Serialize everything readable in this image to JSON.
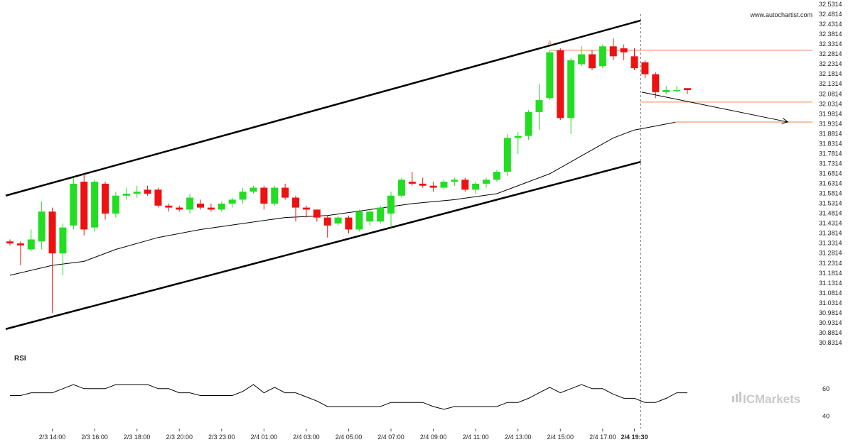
{
  "header": {
    "site_url": "www.autochartist.com"
  },
  "watermark": {
    "text": "ICMarkets",
    "color": "#c8c8c8"
  },
  "colors": {
    "bull": "#22dd22",
    "bear": "#ee1111",
    "channel": "#000000",
    "ma": "#000000",
    "level": "#f08050",
    "rsi": "#000000"
  },
  "chart_data": {
    "type": "candlestick",
    "y_axis": {
      "range": [
        30.8314,
        32.5314
      ],
      "tick_labels": [
        "32.5314",
        "32.4814",
        "32.4314",
        "32.3814",
        "32.3314",
        "32.2814",
        "32.2314",
        "32.1814",
        "32.1314",
        "32.0814",
        "32.0314",
        "31.9814",
        "31.9314",
        "31.8814",
        "31.8314",
        "31.7814",
        "31.7314",
        "31.6814",
        "31.6314",
        "31.5814",
        "31.5314",
        "31.4814",
        "31.4314",
        "31.3814",
        "31.3314",
        "31.2814",
        "31.2314",
        "31.1814",
        "31.1314",
        "31.0814",
        "31.0314",
        "30.9814",
        "30.9314",
        "30.8814",
        "30.8314"
      ]
    },
    "x_axis": {
      "tick_labels": [
        {
          "label": "2/3 14:00",
          "bar": 4
        },
        {
          "label": "2/3 16:00",
          "bar": 8
        },
        {
          "label": "2/3 18:00",
          "bar": 12
        },
        {
          "label": "2/3 20:00",
          "bar": 16
        },
        {
          "label": "2/3 23:00",
          "bar": 20
        },
        {
          "label": "2/4 01:00",
          "bar": 24
        },
        {
          "label": "2/4 03:00",
          "bar": 28
        },
        {
          "label": "2/4 05:00",
          "bar": 32
        },
        {
          "label": "2/4 07:00",
          "bar": 36
        },
        {
          "label": "2/4 09:00",
          "bar": 40
        },
        {
          "label": "2/4 11:00",
          "bar": 44
        },
        {
          "label": "2/4 13:00",
          "bar": 48
        },
        {
          "label": "2/4 15:00",
          "bar": 52
        },
        {
          "label": "2/4 17:00",
          "bar": 56
        },
        {
          "label": "2/4 19:30",
          "bar": 59,
          "bold": true
        }
      ]
    },
    "candles": [
      {
        "o": 31.34,
        "h": 31.35,
        "l": 31.32,
        "c": 31.33
      },
      {
        "o": 31.33,
        "h": 31.34,
        "l": 31.22,
        "c": 31.32
      },
      {
        "o": 31.3,
        "h": 31.4,
        "l": 31.29,
        "c": 31.35
      },
      {
        "o": 31.34,
        "h": 31.54,
        "l": 31.3,
        "c": 31.49
      },
      {
        "o": 31.49,
        "h": 31.51,
        "l": 30.98,
        "c": 31.28
      },
      {
        "o": 31.28,
        "h": 31.43,
        "l": 31.17,
        "c": 31.41
      },
      {
        "o": 31.42,
        "h": 31.66,
        "l": 31.4,
        "c": 31.63
      },
      {
        "o": 31.64,
        "h": 31.68,
        "l": 31.37,
        "c": 31.4
      },
      {
        "o": 31.41,
        "h": 31.65,
        "l": 31.39,
        "c": 31.64
      },
      {
        "o": 31.63,
        "h": 31.64,
        "l": 31.45,
        "c": 31.48
      },
      {
        "o": 31.48,
        "h": 31.59,
        "l": 31.46,
        "c": 31.57
      },
      {
        "o": 31.57,
        "h": 31.61,
        "l": 31.55,
        "c": 31.58
      },
      {
        "o": 31.58,
        "h": 31.62,
        "l": 31.56,
        "c": 31.59
      },
      {
        "o": 31.6,
        "h": 31.62,
        "l": 31.57,
        "c": 31.58
      },
      {
        "o": 31.6,
        "h": 31.61,
        "l": 31.51,
        "c": 31.52
      },
      {
        "o": 31.52,
        "h": 31.53,
        "l": 31.49,
        "c": 31.51
      },
      {
        "o": 31.51,
        "h": 31.52,
        "l": 31.49,
        "c": 31.5
      },
      {
        "o": 31.5,
        "h": 31.58,
        "l": 31.48,
        "c": 31.56
      },
      {
        "o": 31.53,
        "h": 31.55,
        "l": 31.5,
        "c": 31.51
      },
      {
        "o": 31.51,
        "h": 31.53,
        "l": 31.49,
        "c": 31.5
      },
      {
        "o": 31.5,
        "h": 31.54,
        "l": 31.49,
        "c": 31.53
      },
      {
        "o": 31.53,
        "h": 31.56,
        "l": 31.51,
        "c": 31.55
      },
      {
        "o": 31.55,
        "h": 31.61,
        "l": 31.53,
        "c": 31.59
      },
      {
        "o": 31.59,
        "h": 31.62,
        "l": 31.58,
        "c": 31.61
      },
      {
        "o": 31.61,
        "h": 31.62,
        "l": 31.5,
        "c": 31.53
      },
      {
        "o": 31.53,
        "h": 31.62,
        "l": 31.52,
        "c": 31.61
      },
      {
        "o": 31.61,
        "h": 31.63,
        "l": 31.55,
        "c": 31.56
      },
      {
        "o": 31.56,
        "h": 31.57,
        "l": 31.44,
        "c": 31.51
      },
      {
        "o": 31.51,
        "h": 31.52,
        "l": 31.46,
        "c": 31.5
      },
      {
        "o": 31.5,
        "h": 31.5,
        "l": 31.44,
        "c": 31.46
      },
      {
        "o": 31.46,
        "h": 31.47,
        "l": 31.36,
        "c": 31.42
      },
      {
        "o": 31.43,
        "h": 31.47,
        "l": 31.42,
        "c": 31.46
      },
      {
        "o": 31.46,
        "h": 31.47,
        "l": 31.38,
        "c": 31.4
      },
      {
        "o": 31.4,
        "h": 31.5,
        "l": 31.39,
        "c": 31.49
      },
      {
        "o": 31.44,
        "h": 31.5,
        "l": 31.42,
        "c": 31.49
      },
      {
        "o": 31.44,
        "h": 31.52,
        "l": 31.43,
        "c": 31.51
      },
      {
        "o": 31.48,
        "h": 31.59,
        "l": 31.41,
        "c": 31.57
      },
      {
        "o": 31.57,
        "h": 31.66,
        "l": 31.56,
        "c": 31.65
      },
      {
        "o": 31.64,
        "h": 31.69,
        "l": 31.62,
        "c": 31.63
      },
      {
        "o": 31.63,
        "h": 31.66,
        "l": 31.61,
        "c": 31.62
      },
      {
        "o": 31.62,
        "h": 31.64,
        "l": 31.59,
        "c": 31.61
      },
      {
        "o": 31.61,
        "h": 31.65,
        "l": 31.6,
        "c": 31.64
      },
      {
        "o": 31.64,
        "h": 31.66,
        "l": 31.62,
        "c": 31.65
      },
      {
        "o": 31.65,
        "h": 31.66,
        "l": 31.59,
        "c": 31.6
      },
      {
        "o": 31.6,
        "h": 31.64,
        "l": 31.58,
        "c": 31.63
      },
      {
        "o": 31.63,
        "h": 31.66,
        "l": 31.61,
        "c": 31.65
      },
      {
        "o": 31.65,
        "h": 31.7,
        "l": 31.64,
        "c": 31.69
      },
      {
        "o": 31.69,
        "h": 31.88,
        "l": 31.67,
        "c": 31.86
      },
      {
        "o": 31.86,
        "h": 31.89,
        "l": 31.78,
        "c": 31.87
      },
      {
        "o": 31.87,
        "h": 32.0,
        "l": 31.85,
        "c": 31.99
      },
      {
        "o": 31.99,
        "h": 32.13,
        "l": 31.9,
        "c": 32.05
      },
      {
        "o": 32.06,
        "h": 32.3,
        "l": 32.05,
        "c": 32.29
      },
      {
        "o": 32.3,
        "h": 32.31,
        "l": 31.95,
        "c": 31.96
      },
      {
        "o": 31.96,
        "h": 32.26,
        "l": 31.88,
        "c": 32.25
      },
      {
        "o": 32.23,
        "h": 32.32,
        "l": 32.22,
        "c": 32.28
      },
      {
        "o": 32.28,
        "h": 32.3,
        "l": 32.2,
        "c": 32.21
      },
      {
        "o": 32.22,
        "h": 32.33,
        "l": 32.21,
        "c": 32.32
      },
      {
        "o": 32.32,
        "h": 32.36,
        "l": 32.25,
        "c": 32.27
      },
      {
        "o": 32.31,
        "h": 32.33,
        "l": 32.25,
        "c": 32.29
      },
      {
        "o": 32.27,
        "h": 32.31,
        "l": 32.2,
        "c": 32.21
      },
      {
        "o": 32.24,
        "h": 32.25,
        "l": 32.16,
        "c": 32.18
      },
      {
        "o": 32.18,
        "h": 32.19,
        "l": 32.06,
        "c": 32.09
      },
      {
        "o": 32.09,
        "h": 32.12,
        "l": 32.08,
        "c": 32.1
      },
      {
        "o": 32.1,
        "h": 32.12,
        "l": 32.09,
        "c": 32.1
      },
      {
        "o": 32.11,
        "h": 32.11,
        "l": 32.08,
        "c": 32.1
      }
    ],
    "moving_average": [
      {
        "bar": 0,
        "v": 31.17
      },
      {
        "bar": 4,
        "v": 31.22
      },
      {
        "bar": 7,
        "v": 31.24
      },
      {
        "bar": 10,
        "v": 31.3
      },
      {
        "bar": 14,
        "v": 31.36
      },
      {
        "bar": 18,
        "v": 31.4
      },
      {
        "bar": 22,
        "v": 31.43
      },
      {
        "bar": 26,
        "v": 31.46
      },
      {
        "bar": 30,
        "v": 31.47
      },
      {
        "bar": 34,
        "v": 31.5
      },
      {
        "bar": 38,
        "v": 31.53
      },
      {
        "bar": 42,
        "v": 31.55
      },
      {
        "bar": 46,
        "v": 31.58
      },
      {
        "bar": 49,
        "v": 31.64
      },
      {
        "bar": 51,
        "v": 31.68
      },
      {
        "bar": 53,
        "v": 31.74
      },
      {
        "bar": 55,
        "v": 31.8
      },
      {
        "bar": 57,
        "v": 31.86
      },
      {
        "bar": 59,
        "v": 31.9
      },
      {
        "bar": 61,
        "v": 31.92
      },
      {
        "bar": 63,
        "v": 31.94
      }
    ],
    "channel_upper": [
      {
        "bar": -0.4,
        "v": 31.57
      },
      {
        "bar": 59.6,
        "v": 32.45
      }
    ],
    "channel_lower": [
      {
        "bar": -0.4,
        "v": 30.9
      },
      {
        "bar": 59.6,
        "v": 31.74
      }
    ],
    "levels": [
      {
        "from_bar": 51,
        "v": 32.3
      },
      {
        "from_bar": 59.6,
        "v": 32.04
      },
      {
        "from_bar": 62.7,
        "v": 31.94
      }
    ],
    "forecast_arrow": {
      "from": {
        "bar": 59.7,
        "v": 32.09
      },
      "to": {
        "bar": 73.5,
        "v": 31.94
      }
    },
    "pattern_point": {
      "label": "A",
      "bar": 51,
      "v": 32.32
    },
    "current_time_bar": 59.6,
    "rsi": {
      "label": "RSI",
      "tick_labels": [
        "60",
        "40"
      ],
      "ticks": [
        60,
        40
      ],
      "range": [
        33,
        77
      ],
      "values": [
        55,
        55,
        57,
        57,
        57,
        60,
        63,
        60,
        60,
        60,
        63,
        63,
        63,
        63,
        60,
        60,
        57,
        57,
        55,
        55,
        55,
        55,
        58,
        63,
        57,
        61,
        57,
        57,
        54,
        51,
        47,
        47,
        47,
        47,
        47,
        47,
        50,
        50,
        50,
        50,
        47,
        45,
        47,
        47,
        47,
        47,
        47,
        50,
        50,
        53,
        57,
        61,
        57,
        60,
        63,
        60,
        60,
        56,
        53,
        53,
        50,
        50,
        53,
        57,
        57
      ]
    }
  }
}
